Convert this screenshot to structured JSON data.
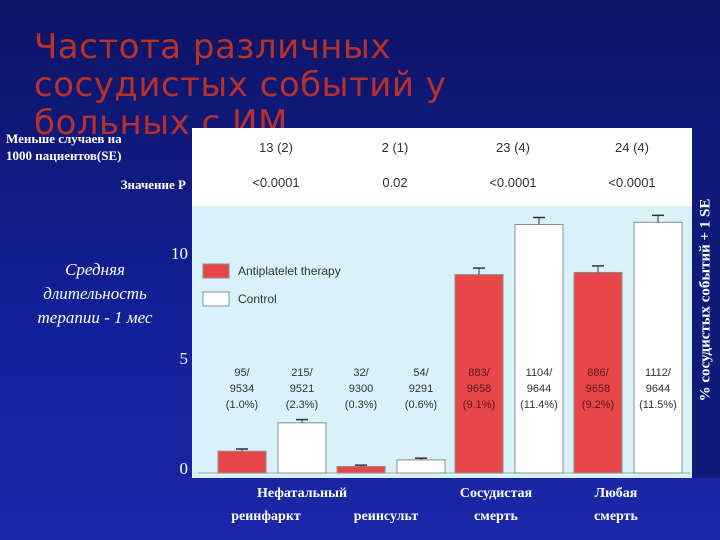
{
  "title": {
    "line1": "Частота различных",
    "line2": "сосудистых событий у",
    "line3": "больных с ИМ"
  },
  "left_panel": {
    "fewer_cases_line1": "Меньше случаев на",
    "fewer_cases_line2": "1000 пациентов(SE)",
    "p_value_label": "Значение P",
    "duration_line1": "Средняя",
    "duration_line2": "длительность",
    "duration_line3": "терапии - 1 мес"
  },
  "right_axis_label": "% сосудистых событий + 1 SE",
  "colors": {
    "antiplatelet": "#e8474a",
    "control": "#ffffff",
    "plot_bg": "#d9f2fa",
    "slide_bg": "#101a78",
    "title": "#b8302a"
  },
  "chart_data": {
    "type": "bar",
    "ylim": [
      0,
      14
    ],
    "yticks": [
      "0",
      "5",
      "10"
    ],
    "legend": [
      "Antiplatelet therapy",
      "Control"
    ],
    "legend_position": "top-left",
    "groups": [
      {
        "fewer_per_1000": "13 (2)",
        "p_value": "<0.0001",
        "antiplatelet": 1.0,
        "control": 2.3,
        "antiplatelet_se": 0.1,
        "control_se": 0.15,
        "antiplatelet_label": [
          "95/",
          "9534",
          "(1.0%)"
        ],
        "control_label": [
          "215/",
          "9521",
          "(2.3%)"
        ]
      },
      {
        "fewer_per_1000": "2 (1)",
        "p_value": "0.02",
        "antiplatelet": 0.3,
        "control": 0.6,
        "antiplatelet_se": 0.06,
        "control_se": 0.08,
        "antiplatelet_label": [
          "32/",
          "9300",
          "(0.3%)"
        ],
        "control_label": [
          "54/",
          "9291",
          "(0.6%)"
        ]
      },
      {
        "fewer_per_1000": "23 (4)",
        "p_value": "<0.0001",
        "antiplatelet": 9.1,
        "control": 11.4,
        "antiplatelet_se": 0.3,
        "control_se": 0.32,
        "antiplatelet_label": [
          "883/",
          "9658",
          "(9.1%)"
        ],
        "control_label": [
          "1104/",
          "9644",
          "(11.4%)"
        ]
      },
      {
        "fewer_per_1000": "24 (4)",
        "p_value": "<0.0001",
        "antiplatelet": 9.2,
        "control": 11.5,
        "antiplatelet_se": 0.3,
        "control_se": 0.32,
        "antiplatelet_label": [
          "886/",
          "9658",
          "(9.2%)"
        ],
        "control_label": [
          "1112/",
          "9644",
          "(11.5%)"
        ]
      }
    ],
    "x_labels": {
      "group1_line1": "Нефатальный",
      "group1_line2": "реинфаркт",
      "group2_line2": "реинсульт",
      "group3_line1": "Сосудистая",
      "group3_line2": "смерть",
      "group4_line1": "Любая",
      "group4_line2": "смерть"
    }
  }
}
